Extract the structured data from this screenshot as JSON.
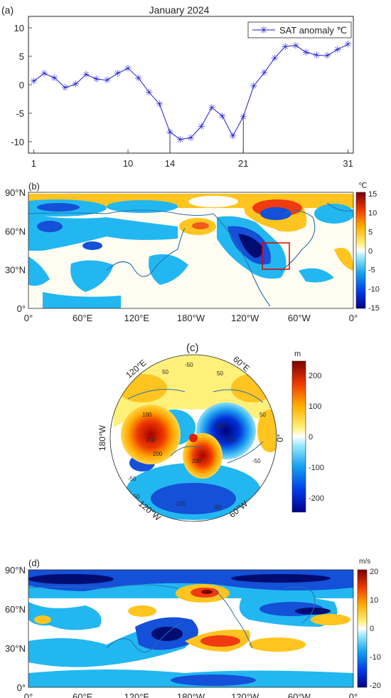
{
  "panel_a": {
    "label": "(a)",
    "title": "January 2024",
    "legend": "SAT anomaly ℃"
  },
  "panel_b": {
    "label": "(b)",
    "unit": "℃",
    "colorbar_ticks": [
      "15",
      "10",
      "5",
      "0",
      "-5",
      "-10",
      "-15"
    ]
  },
  "panel_c": {
    "label": "(c)",
    "unit": "m",
    "colorbar_ticks": [
      "200",
      "100",
      "0",
      "-100",
      "-200"
    ],
    "lon_labels": {
      "e120": "120°E",
      "e60": "60°E",
      "w180": "180°W",
      "zero": "0°",
      "w120": "120°W",
      "w60": "60°W"
    }
  },
  "panel_d": {
    "label": "(d)",
    "unit": "m/s",
    "colorbar_ticks": [
      "20",
      "10",
      "0",
      "-10",
      "-20"
    ]
  },
  "map_axes": {
    "x_ticks": [
      "0°",
      "60°E",
      "120°E",
      "180°W",
      "120°W",
      "60°W",
      "0°"
    ],
    "y_ticks": [
      "90°N",
      "60°N",
      "30°N",
      "0°"
    ]
  },
  "colors": {
    "line": "#1f1fd6",
    "box": "#e00000",
    "coast": "#2a6fb0"
  },
  "chart_data": [
    {
      "type": "line",
      "title": "January 2024",
      "series": [
        {
          "name": "SAT anomaly ℃",
          "x": [
            1,
            2,
            3,
            4,
            5,
            6,
            7,
            8,
            9,
            10,
            11,
            12,
            13,
            14,
            15,
            16,
            17,
            18,
            19,
            20,
            21,
            22,
            23,
            24,
            25,
            26,
            27,
            28,
            29,
            30,
            31
          ],
          "values": [
            0.6,
            2.0,
            1.2,
            -0.5,
            0.1,
            1.8,
            1.0,
            0.8,
            2.0,
            2.9,
            1.2,
            -1.3,
            -3.4,
            -8.3,
            -9.6,
            -9.3,
            -7.3,
            -4.0,
            -5.5,
            -9.0,
            -5.6,
            -0.2,
            2.1,
            4.7,
            6.7,
            6.9,
            5.7,
            5.2,
            5.1,
            6.2,
            7.1
          ]
        }
      ],
      "x_ticks": [
        1,
        10,
        14,
        21,
        31
      ],
      "y_ticks": [
        10,
        5,
        0,
        -5,
        -10
      ],
      "xlim": [
        0.5,
        31.5
      ],
      "ylim": [
        -12,
        12
      ],
      "markers": [
        14,
        21
      ]
    },
    {
      "type": "heatmap",
      "colorbar": [
        -15,
        15
      ],
      "highlight_box": "red rectangle over central North America"
    },
    {
      "type": "heatmap",
      "colorbar": [
        -250,
        250
      ],
      "projection": "north polar stereographic"
    },
    {
      "type": "heatmap",
      "colorbar": [
        -20,
        20
      ]
    }
  ]
}
